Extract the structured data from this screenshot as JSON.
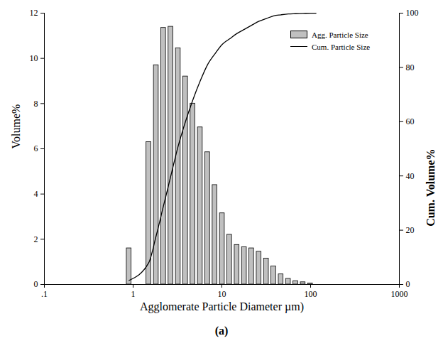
{
  "chart_data": {
    "type": "bar",
    "caption": "(a)",
    "xlabel": "Agglomerate Particle Diameter µm)",
    "ylabel": "Volume%",
    "y2label": "Cum. Volume%",
    "log": "x",
    "legend": "top-right",
    "xlim": [
      0.1,
      1000
    ],
    "xticks": [
      {
        "value": 0.1,
        "label": ".1"
      },
      1,
      10,
      100,
      1000
    ],
    "ylim": [
      0,
      12
    ],
    "yticks": [
      0,
      2,
      4,
      6,
      8,
      10,
      12
    ],
    "y2lim": [
      0,
      100
    ],
    "y2ticks": [
      0,
      20,
      40,
      60,
      80,
      100
    ],
    "series": [
      {
        "name": "Agg. Particle Size",
        "type": "bar",
        "color": "#c0c0c0",
        "x": [
          0.9,
          1.5,
          1.82,
          2.2,
          2.66,
          3.22,
          3.89,
          4.71,
          5.7,
          6.9,
          8.35,
          10.1,
          12.2,
          14.8,
          17.9,
          21.6,
          26.2,
          31.7,
          38.3,
          46.4,
          56.1,
          67.9,
          82.2,
          99.4
        ],
        "values": [
          1.6,
          6.3,
          9.7,
          11.35,
          11.4,
          10.45,
          9.2,
          8.0,
          6.95,
          5.85,
          4.4,
          3.15,
          2.2,
          1.75,
          1.65,
          1.6,
          1.45,
          1.15,
          0.8,
          0.45,
          0.25,
          0.15,
          0.1,
          0.05
        ]
      },
      {
        "name": "Cum. Particle Size",
        "type": "line",
        "axis": "y2",
        "color": "#000000",
        "x": [
          0.9,
          1.5,
          1.82,
          2.2,
          2.66,
          3.22,
          3.89,
          4.71,
          5.7,
          6.9,
          8.35,
          10.1,
          12.2,
          14.8,
          17.9,
          21.6,
          26.2,
          31.7,
          38.3,
          46.4,
          56.1,
          67.9,
          82.2,
          99.4,
          115
        ],
        "values": [
          1.5,
          8,
          18,
          29,
          40,
          51,
          60,
          68,
          75,
          81,
          85,
          88.5,
          90.5,
          92.5,
          94,
          95.5,
          97,
          98,
          99,
          99.4,
          99.7,
          99.8,
          99.9,
          100,
          100
        ]
      }
    ]
  }
}
